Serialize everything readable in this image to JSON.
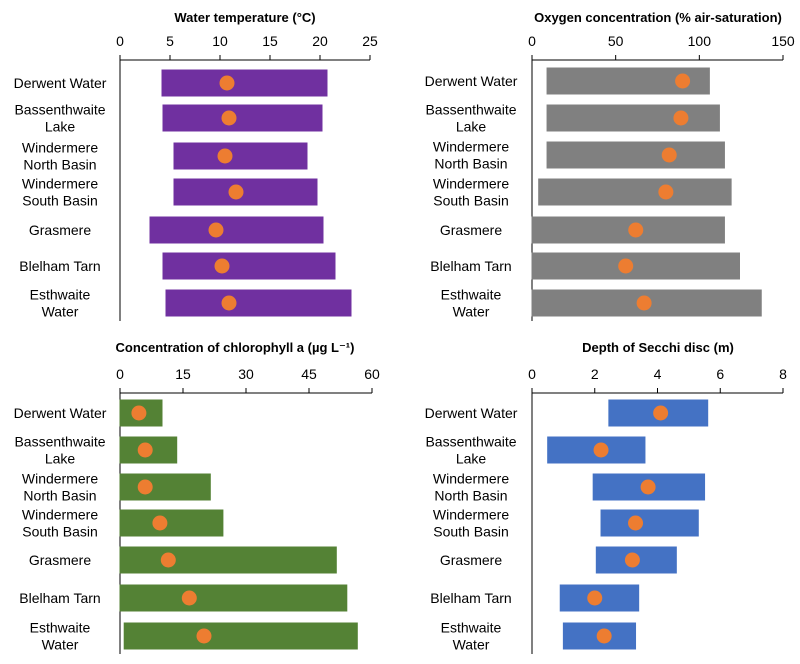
{
  "lakes": [
    [
      "Derwent Water"
    ],
    [
      "Bassenthwaite",
      "Lake"
    ],
    [
      "Windermere",
      "North Basin"
    ],
    [
      "Windermere",
      "South Basin"
    ],
    [
      "Grasmere"
    ],
    [
      "Blelham Tarn"
    ],
    [
      "Esthwaite",
      "Water"
    ]
  ],
  "chart_data": [
    {
      "type": "bar",
      "title": "Water temperature (°C)",
      "xlim": [
        0,
        25
      ],
      "ticks": [
        0,
        5,
        10,
        15,
        20,
        25
      ],
      "categories": [
        "Derwent Water",
        "Bassenthwaite Lake",
        "Windermere North Basin",
        "Windermere South Basin",
        "Grasmere",
        "Blelham Tarn",
        "Esthwaite Water"
      ],
      "ranges": [
        [
          4.2,
          20.7
        ],
        [
          4.3,
          20.2
        ],
        [
          5.4,
          18.7
        ],
        [
          5.4,
          19.7
        ],
        [
          3.0,
          20.3
        ],
        [
          4.3,
          21.5
        ],
        [
          4.6,
          23.1
        ]
      ],
      "points": [
        10.7,
        10.9,
        10.5,
        11.6,
        9.6,
        10.2,
        10.9
      ],
      "bar_color": "#7030a0",
      "point_color": "#ed7d31"
    },
    {
      "type": "bar",
      "title": "Oxygen concentration (% air-saturation)",
      "xlim": [
        0,
        150
      ],
      "ticks": [
        0,
        50,
        100,
        150
      ],
      "categories": [
        "Derwent Water",
        "Bassenthwaite Lake",
        "Windermere North Basin",
        "Windermere South Basin",
        "Grasmere",
        "Blelham Tarn",
        "Esthwaite Water"
      ],
      "ranges": [
        [
          9,
          106
        ],
        [
          9,
          112
        ],
        [
          9,
          115
        ],
        [
          4,
          119
        ],
        [
          0,
          115
        ],
        [
          0,
          124
        ],
        [
          0,
          137
        ]
      ],
      "points": [
        90,
        89,
        82,
        80,
        62,
        56,
        67
      ],
      "bar_color": "#808080",
      "point_color": "#ed7d31"
    },
    {
      "type": "bar",
      "title": "Concentration of chlorophyll a (µg L⁻¹)",
      "xlim": [
        0,
        60
      ],
      "ticks": [
        0,
        15,
        30,
        45,
        60
      ],
      "categories": [
        "Derwent Water",
        "Bassenthwaite Lake",
        "Windermere North Basin",
        "Windermere South Basin",
        "Grasmere",
        "Blelham Tarn",
        "Esthwaite Water"
      ],
      "ranges": [
        [
          0,
          10
        ],
        [
          0,
          13.5
        ],
        [
          0,
          21.5
        ],
        [
          0,
          24.5
        ],
        [
          0,
          51.5
        ],
        [
          0,
          54
        ],
        [
          1,
          56.5
        ]
      ],
      "points": [
        4.5,
        6,
        6,
        9.5,
        11.5,
        16.5,
        20
      ],
      "bar_color": "#548235",
      "point_color": "#ed7d31"
    },
    {
      "type": "bar",
      "title": "Depth of Secchi disc (m)",
      "xlim": [
        0,
        8
      ],
      "ticks": [
        0,
        2,
        4,
        6,
        8
      ],
      "categories": [
        "Derwent Water",
        "Bassenthwaite Lake",
        "Windermere North Basin",
        "Windermere South Basin",
        "Grasmere",
        "Blelham Tarn",
        "Esthwaite Water"
      ],
      "ranges": [
        [
          2.45,
          5.6
        ],
        [
          0.5,
          3.6
        ],
        [
          1.95,
          5.5
        ],
        [
          2.2,
          5.3
        ],
        [
          2.05,
          4.6
        ],
        [
          0.9,
          3.4
        ],
        [
          1.0,
          3.3
        ]
      ],
      "points": [
        4.1,
        2.2,
        3.7,
        3.3,
        3.2,
        2.0,
        2.3
      ],
      "bar_color": "#4472c4",
      "point_color": "#ed7d31"
    }
  ]
}
